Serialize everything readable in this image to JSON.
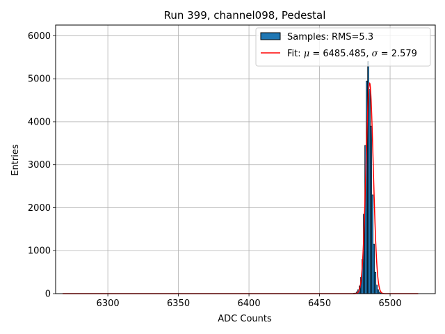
{
  "chart_data": {
    "type": "bar",
    "title": "Run 399, channel098, Pedestal",
    "xlabel": "ADC Counts",
    "ylabel": "Entries",
    "xlim": [
      6263,
      6532
    ],
    "ylim": [
      0,
      6250
    ],
    "xticks": [
      6300,
      6350,
      6400,
      6450,
      6500
    ],
    "yticks": [
      0,
      1000,
      2000,
      3000,
      4000,
      5000,
      6000
    ],
    "grid": true,
    "legend": {
      "placement": "top-right",
      "entries": [
        {
          "label": "Samples: RMS=5.3",
          "kind": "patch",
          "color": "#1f77b4"
        },
        {
          "label_prefix": "Fit: ",
          "mu_symbol": "μ",
          "mu_text": " = 6485.485, ",
          "sigma_symbol": "σ",
          "sigma_text": " = 2.579",
          "kind": "line",
          "color": "#ff0000"
        }
      ]
    },
    "histogram": {
      "bin_width": 1,
      "bin_starts": [
        6474,
        6475,
        6476,
        6477,
        6478,
        6479,
        6480,
        6481,
        6482,
        6483,
        6484,
        6485,
        6486,
        6487,
        6488,
        6489,
        6490,
        6491,
        6492,
        6493,
        6494,
        6495
      ],
      "counts": [
        8,
        15,
        40,
        90,
        180,
        380,
        800,
        1850,
        3450,
        4950,
        5400,
        4750,
        3900,
        2300,
        1150,
        500,
        200,
        90,
        35,
        15,
        6,
        3
      ],
      "color": "#1f77b4",
      "edge_color": "#000000"
    },
    "fit": {
      "mu": 6485.485,
      "sigma": 2.579,
      "amplitude": 4900,
      "x_range": [
        6268,
        6520
      ],
      "color": "#ff0000"
    }
  }
}
